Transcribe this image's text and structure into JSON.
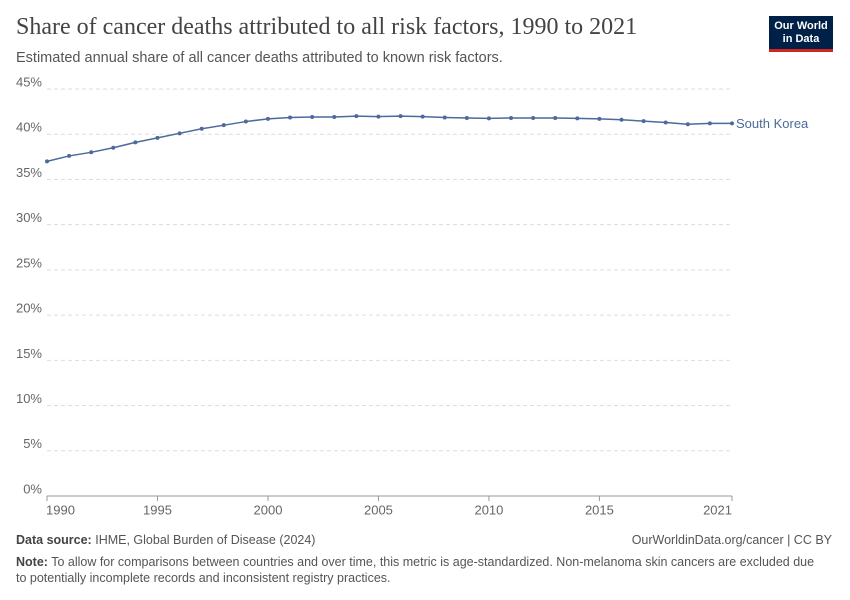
{
  "chart_data": {
    "type": "line",
    "title": "Share of cancer deaths attributed to all risk factors, 1990 to 2021",
    "subtitle": "Estimated annual share of all cancer deaths attributed to known risk factors.",
    "x": [
      1990,
      1991,
      1992,
      1993,
      1994,
      1995,
      1996,
      1997,
      1998,
      1999,
      2000,
      2001,
      2002,
      2003,
      2004,
      2005,
      2006,
      2007,
      2008,
      2009,
      2010,
      2011,
      2012,
      2013,
      2014,
      2015,
      2016,
      2017,
      2018,
      2019,
      2020,
      2021
    ],
    "series": [
      {
        "name": "South Korea",
        "color": "#4c6a9c",
        "values": [
          37.0,
          37.6,
          38.0,
          38.5,
          39.1,
          39.6,
          40.1,
          40.6,
          41.0,
          41.4,
          41.7,
          41.85,
          41.9,
          41.9,
          42.0,
          41.95,
          42.0,
          41.95,
          41.85,
          41.8,
          41.75,
          41.8,
          41.8,
          41.8,
          41.75,
          41.7,
          41.6,
          41.45,
          41.3,
          41.1,
          41.2,
          41.2
        ]
      }
    ],
    "xlim": [
      1990,
      2021
    ],
    "xticks": [
      1990,
      1995,
      2000,
      2005,
      2010,
      2015,
      2021
    ],
    "ylim": [
      0,
      45
    ],
    "yticks": [
      {
        "value": 0,
        "label": "0%"
      },
      {
        "value": 5,
        "label": "5%"
      },
      {
        "value": 10,
        "label": "10%"
      },
      {
        "value": 15,
        "label": "15%"
      },
      {
        "value": 20,
        "label": "20%"
      },
      {
        "value": 25,
        "label": "25%"
      },
      {
        "value": 30,
        "label": "30%"
      },
      {
        "value": 35,
        "label": "35%"
      },
      {
        "value": 40,
        "label": "40%"
      },
      {
        "value": 45,
        "label": "45%"
      }
    ],
    "grid": true
  },
  "logo": {
    "line1": "Our World",
    "line2": "in Data"
  },
  "footer": {
    "source_label": "Data source:",
    "source": "IHME, Global Burden of Disease (2024)",
    "link": "OurWorldinData.org/cancer | CC BY",
    "note_label": "Note:",
    "note": "To allow for comparisons between countries and over time, this metric is age-standardized. Non-melanoma skin cancers are excluded due to potentially incomplete records and inconsistent registry practices."
  }
}
